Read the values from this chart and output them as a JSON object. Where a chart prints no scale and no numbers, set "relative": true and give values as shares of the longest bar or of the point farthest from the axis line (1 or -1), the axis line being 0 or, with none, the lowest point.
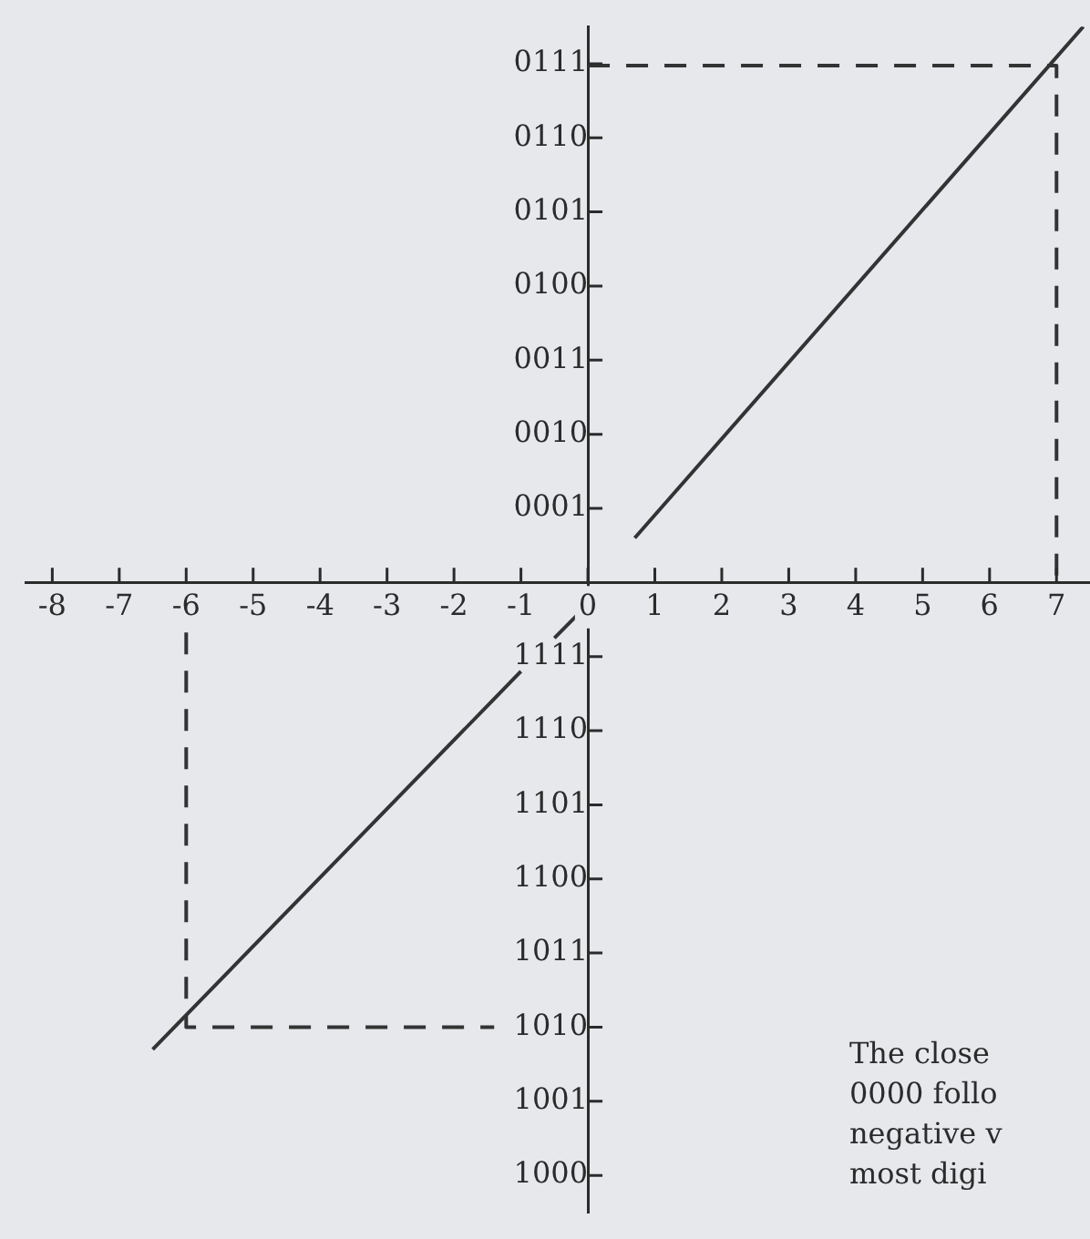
{
  "chart_data": {
    "type": "line",
    "marker": "none",
    "line_style": "solid",
    "relative": true,
    "xlim": [
      -8.4,
      7.5
    ],
    "xticks": [
      -8,
      -7,
      -6,
      -5,
      -4,
      -3,
      -2,
      -1,
      0,
      1,
      2,
      3,
      4,
      5,
      6,
      7
    ],
    "y_categories": [
      "0111",
      "0110",
      "0101",
      "0100",
      "0011",
      "0010",
      "0001",
      null,
      "1111",
      "1110",
      "1101",
      "1100",
      "1011",
      "1010",
      "1001",
      "1000"
    ],
    "series": [
      {
        "color": "#333333",
        "x": [
          -6.5,
          -1,
          -0.75,
          -0.5,
          -0.17,
          0.25,
          0.7,
          7.4
        ],
        "values": [
          -0.84,
          -0.16,
          null,
          -0.1,
          -0.06,
          null,
          0.08,
          1
        ]
      },
      {
        "color": "#333333",
        "line_style": "dashed",
        "x": [
          0,
          7,
          7
        ],
        "values": [
          0.93,
          0.93,
          0
        ]
      },
      {
        "color": "#333333",
        "line_style": "dashed",
        "x": [
          -6,
          -6,
          -1.4
        ],
        "values": [
          -0.09,
          -0.8,
          -0.8
        ]
      }
    ],
    "annotations": [
      "The close\n0000 follo\nnegative v\nmost digi"
    ]
  }
}
